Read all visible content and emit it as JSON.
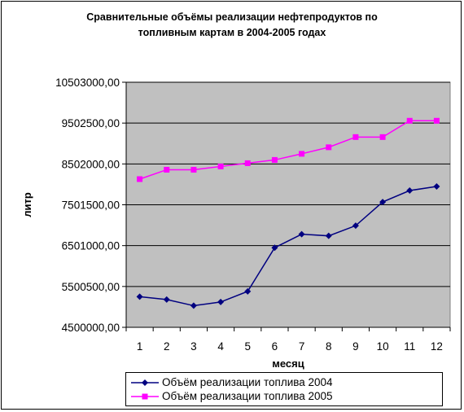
{
  "chart_data": {
    "type": "line",
    "title_lines": [
      "Сравнительные объёмы реализации нефтепродуктов по",
      "топливным картам в 2004-2005 годах"
    ],
    "xlabel": "месяц",
    "ylabel": "литр",
    "categories": [
      "1",
      "2",
      "3",
      "4",
      "5",
      "6",
      "7",
      "8",
      "9",
      "10",
      "11",
      "12"
    ],
    "y_ticks": [
      "4500000,00",
      "5500500,00",
      "6501000,00",
      "7501500,00",
      "8502000,00",
      "9502500,00",
      "10503000,00"
    ],
    "ylim": [
      4500000,
      10503000
    ],
    "plot_background": "#c0c0c0",
    "grid": true,
    "legend_position": "bottom",
    "series": [
      {
        "name": "Объём реализации топлива 2004",
        "color": "#000080",
        "marker": "diamond",
        "values": [
          5250000,
          5180000,
          5030000,
          5120000,
          5380000,
          6450000,
          6780000,
          6740000,
          6990000,
          7570000,
          7850000,
          7950000
        ]
      },
      {
        "name": "Объём реализации топлива 2005",
        "color": "#ff00ff",
        "marker": "square",
        "values": [
          8130000,
          8360000,
          8360000,
          8440000,
          8520000,
          8600000,
          8750000,
          8910000,
          9160000,
          9160000,
          9560000,
          9560000
        ]
      }
    ]
  }
}
